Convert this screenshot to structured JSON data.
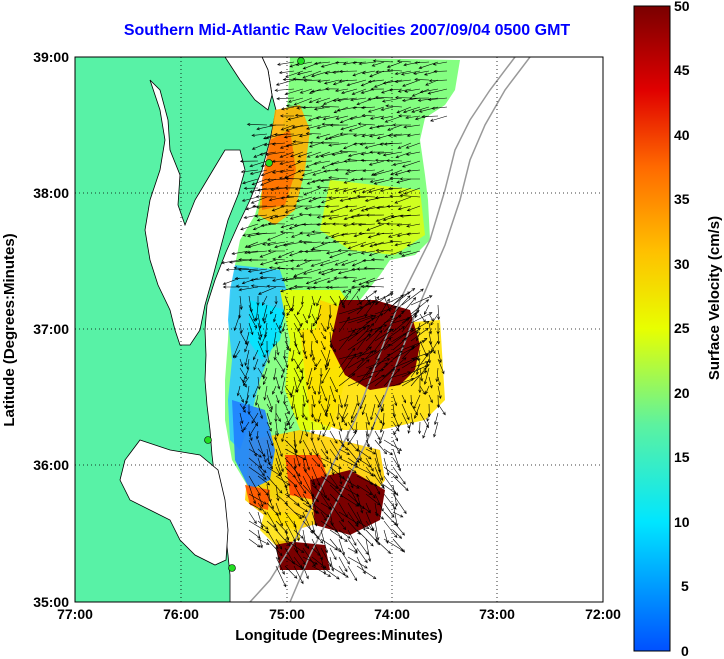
{
  "title": "Southern Mid-Atlantic Raw Velocities 2007/09/04 0500 GMT",
  "xlabel": "Longitude (Degrees:Minutes)",
  "ylabel": "Latitude (Degrees:Minutes)",
  "colorbar_label": "Surface Velocity (cm/s)",
  "x_ticks": [
    "77:00",
    "76:00",
    "75:00",
    "74:00",
    "73:00",
    "72:00"
  ],
  "x_tick_values": [
    -77,
    -76,
    -75,
    -74,
    -73,
    -72
  ],
  "y_ticks": [
    "39:00",
    "38:00",
    "37:00",
    "36:00",
    "35:00"
  ],
  "y_tick_values": [
    39,
    38,
    37,
    36,
    35
  ],
  "colorbar_ticks": [
    "50",
    "45",
    "40",
    "35",
    "30",
    "25",
    "20",
    "15",
    "10",
    "5",
    "0"
  ],
  "colorbar_range": [
    0,
    50
  ],
  "colors": {
    "land": "#58f2a6",
    "title": "#0000ff",
    "site_marker": "#22dd22"
  },
  "map_extent": {
    "lon": [
      -77,
      -72
    ],
    "lat": [
      35,
      39
    ]
  }
}
